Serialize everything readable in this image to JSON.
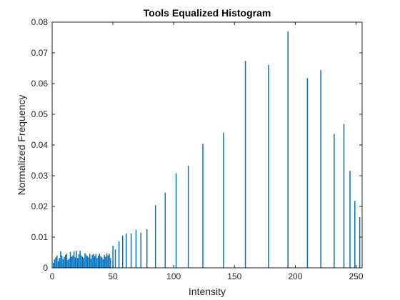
{
  "chart_data": {
    "type": "bar",
    "title": "Tools Equalized Histogram",
    "xlabel": "Intensity",
    "ylabel": "Normalized Frequency",
    "xlim": [
      0,
      255
    ],
    "ylim": [
      0,
      0.08
    ],
    "xticks": [
      0,
      50,
      100,
      150,
      200,
      250
    ],
    "yticks": [
      0,
      0.01,
      0.02,
      0.03,
      0.04,
      0.05,
      0.06,
      0.07,
      0.08
    ],
    "xtick_labels": [
      "0",
      "50",
      "100",
      "150",
      "200",
      "250"
    ],
    "ytick_labels": [
      "0",
      "0.01",
      "0.02",
      "0.03",
      "0.04",
      "0.05",
      "0.06",
      "0.07",
      "0.08"
    ],
    "grid": false,
    "colors": {
      "bar": "#0072BD",
      "axis": "#262626",
      "background": "#ffffff"
    },
    "series": [
      {
        "x": [
          1,
          2,
          3,
          4,
          5,
          6,
          7,
          8,
          9,
          10,
          11,
          12,
          13,
          14,
          15,
          16,
          17,
          18,
          19,
          20,
          21,
          22,
          23,
          24,
          25,
          26,
          27,
          28,
          29,
          30,
          31,
          32,
          33,
          34,
          35,
          36,
          37,
          38,
          39,
          40,
          41,
          42,
          43,
          44,
          45,
          46,
          47,
          48,
          50,
          52,
          55,
          58,
          61,
          65,
          69,
          73,
          78,
          85,
          93,
          102,
          112,
          124,
          141,
          159,
          178,
          194,
          210,
          221,
          232,
          240,
          245,
          249,
          253
        ],
        "values": [
          0.0016,
          0.0028,
          0.0034,
          0.004,
          0.0022,
          0.0032,
          0.0054,
          0.004,
          0.0028,
          0.0036,
          0.0042,
          0.0046,
          0.0026,
          0.003,
          0.0052,
          0.0036,
          0.004,
          0.0054,
          0.0034,
          0.0056,
          0.0032,
          0.0044,
          0.0056,
          0.004,
          0.0036,
          0.0032,
          0.0048,
          0.0042,
          0.0038,
          0.0034,
          0.0046,
          0.003,
          0.0042,
          0.0046,
          0.0038,
          0.0044,
          0.0032,
          0.004,
          0.0046,
          0.0038,
          0.0034,
          0.0028,
          0.0042,
          0.0036,
          0.0048,
          0.004,
          0.0046,
          0.0032,
          0.0072,
          0.006,
          0.0086,
          0.0105,
          0.0112,
          0.0112,
          0.0124,
          0.0115,
          0.0126,
          0.0204,
          0.0245,
          0.0307,
          0.0333,
          0.0404,
          0.044,
          0.0674,
          0.0661,
          0.077,
          0.0618,
          0.0644,
          0.0436,
          0.0469,
          0.0316,
          0.0218,
          0.0165
        ]
      }
    ]
  }
}
